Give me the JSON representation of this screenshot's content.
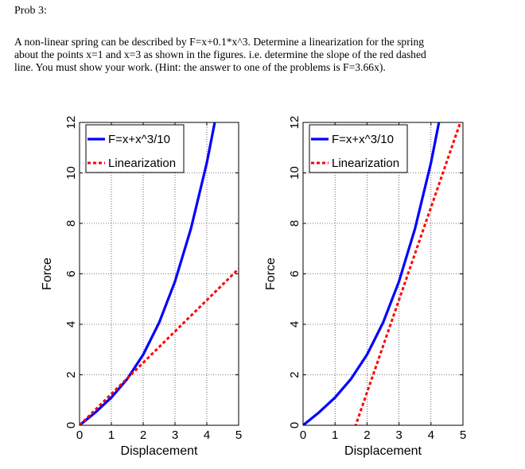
{
  "problem": {
    "title": "Prob 3:",
    "lines": [
      "A non-linear spring can be described by F=x+0.1*x^3.  Determine a linearization for the spring",
      "about the points x=1 and x=3 as shown in the figures.  i.e. determine the slope of the red dashed",
      "line.  You must show your work.  (Hint: the answer to one of the problems is F=3.66x)."
    ]
  },
  "colors": {
    "curve": "#0000ff",
    "linearization": "#ff0000",
    "grid": "#000000",
    "axis": "#000000"
  },
  "chart_data": [
    {
      "type": "line",
      "xlabel": "Displacement",
      "ylabel": "Force",
      "xlim": [
        0,
        5
      ],
      "ylim": [
        0,
        12
      ],
      "xticks": [
        0,
        1,
        2,
        3,
        4,
        5
      ],
      "yticks": [
        0,
        2,
        4,
        6,
        8,
        10,
        12
      ],
      "grid": true,
      "legend_position": "top-left",
      "series": [
        {
          "name": "F=x+x^3/10",
          "style": "solid",
          "color": "#0000ff",
          "x": [
            0,
            0.5,
            1,
            1.5,
            2,
            2.5,
            3,
            3.5,
            4,
            4.5
          ],
          "y": [
            0,
            0.5125,
            1.1,
            1.8375,
            2.8,
            4.0625,
            5.7,
            7.7875,
            10.4,
            13.6125
          ]
        },
        {
          "name": "Linearization",
          "style": "dashed",
          "color": "#ff0000",
          "x": [
            0,
            5
          ],
          "y": [
            0,
            6.2
          ]
        }
      ]
    },
    {
      "type": "line",
      "xlabel": "Displacement",
      "ylabel": "Force",
      "xlim": [
        0,
        5
      ],
      "ylim": [
        0,
        12
      ],
      "xticks": [
        0,
        1,
        2,
        3,
        4,
        5
      ],
      "yticks": [
        0,
        2,
        4,
        6,
        8,
        10,
        12
      ],
      "grid": true,
      "legend_position": "top-left",
      "series": [
        {
          "name": "F=x+x^3/10",
          "style": "solid",
          "color": "#0000ff",
          "x": [
            0,
            0.5,
            1,
            1.5,
            2,
            2.5,
            3,
            3.5,
            4,
            4.5
          ],
          "y": [
            0,
            0.5125,
            1.1,
            1.8375,
            2.8,
            4.0625,
            5.7,
            7.7875,
            10.4,
            13.6125
          ]
        },
        {
          "name": "Linearization",
          "style": "dashed",
          "color": "#ff0000",
          "x": [
            1.4,
            5
          ],
          "y": [
            -0.9,
            12.3
          ]
        }
      ]
    }
  ]
}
